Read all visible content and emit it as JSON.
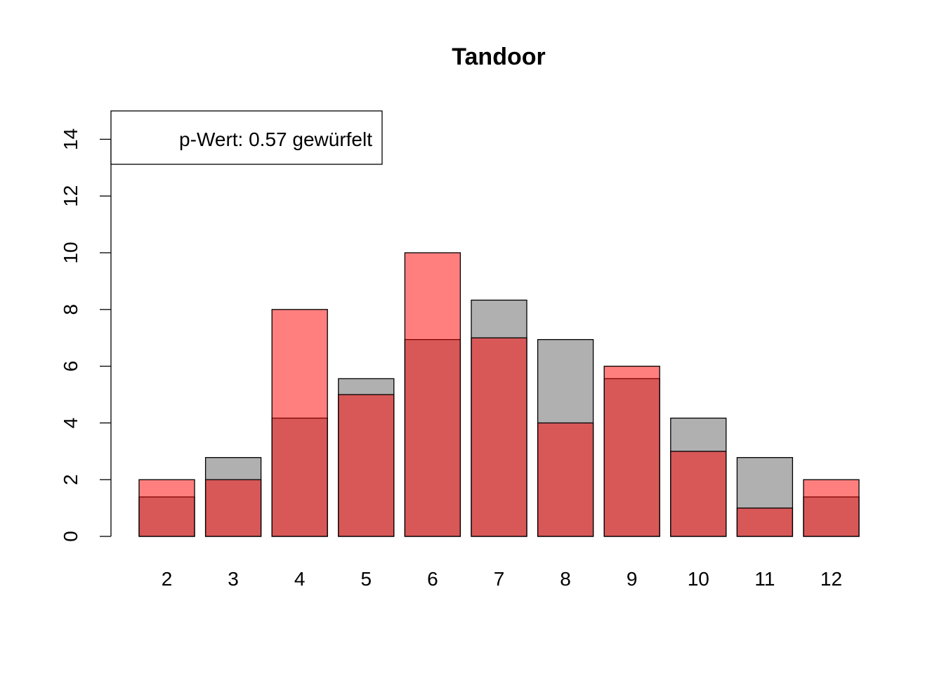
{
  "chart_data": {
    "type": "bar",
    "title": "Tandoor",
    "xlabel": "",
    "ylabel": "",
    "categories": [
      "2",
      "3",
      "4",
      "5",
      "6",
      "7",
      "8",
      "9",
      "10",
      "11",
      "12"
    ],
    "series": [
      {
        "values": [
          1.39,
          2.78,
          4.17,
          5.56,
          6.94,
          8.33,
          6.94,
          5.56,
          4.17,
          2.78,
          1.39
        ],
        "color": "#b0b0b0"
      },
      {
        "values": [
          2,
          2,
          8,
          5,
          10,
          7,
          4,
          6,
          3,
          1,
          2
        ],
        "color": "rgba(255,0,0,0.5)"
      }
    ],
    "ylim": [
      0,
      15
    ],
    "yticks": [
      0,
      2,
      4,
      6,
      8,
      10,
      12,
      14
    ],
    "grid": false,
    "legend": {
      "position": "top-left",
      "text": "p-Wert: 0.57 gewürfelt"
    }
  }
}
